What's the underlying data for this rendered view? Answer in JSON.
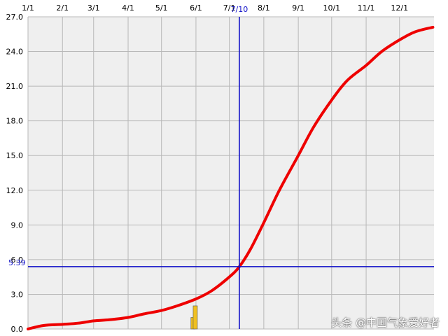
{
  "chart_data": {
    "type": "line",
    "title": "",
    "xlabel": "",
    "ylabel": "",
    "x_axis": {
      "kind": "date",
      "range": [
        "1/1",
        "12/31"
      ],
      "ticks": [
        "1/1",
        "2/1",
        "3/1",
        "4/1",
        "5/1",
        "6/1",
        "7/1",
        "8/1",
        "9/1",
        "10/1",
        "11/1",
        "12/1"
      ],
      "position": "top"
    },
    "y_axis": {
      "range": [
        0,
        27
      ],
      "ticks": [
        "0.0",
        "3.0",
        "6.0",
        "9.0",
        "12.0",
        "15.0",
        "18.0",
        "21.0",
        "24.0",
        "27.0"
      ]
    },
    "grid": true,
    "series": [
      {
        "color": "#ee0000",
        "points": [
          {
            "x": "1/1",
            "y": 0.0
          },
          {
            "x": "1/15",
            "y": 0.3
          },
          {
            "x": "2/1",
            "y": 0.4
          },
          {
            "x": "2/15",
            "y": 0.5
          },
          {
            "x": "3/1",
            "y": 0.7
          },
          {
            "x": "3/15",
            "y": 0.8
          },
          {
            "x": "4/1",
            "y": 1.0
          },
          {
            "x": "4/15",
            "y": 1.3
          },
          {
            "x": "5/1",
            "y": 1.6
          },
          {
            "x": "5/15",
            "y": 2.0
          },
          {
            "x": "6/1",
            "y": 2.6
          },
          {
            "x": "6/15",
            "y": 3.3
          },
          {
            "x": "7/1",
            "y": 4.5
          },
          {
            "x": "7/10",
            "y": 5.39
          },
          {
            "x": "7/20",
            "y": 6.9
          },
          {
            "x": "8/1",
            "y": 9.2
          },
          {
            "x": "8/15",
            "y": 12.0
          },
          {
            "x": "9/1",
            "y": 15.0
          },
          {
            "x": "9/15",
            "y": 17.5
          },
          {
            "x": "10/1",
            "y": 19.8
          },
          {
            "x": "10/15",
            "y": 21.5
          },
          {
            "x": "11/1",
            "y": 22.8
          },
          {
            "x": "11/15",
            "y": 24.0
          },
          {
            "x": "12/1",
            "y": 25.0
          },
          {
            "x": "12/15",
            "y": 25.7
          },
          {
            "x": "12/31",
            "y": 26.1
          }
        ]
      }
    ],
    "bars": {
      "color": "#f0c020",
      "items": [
        {
          "x": "5/30",
          "y": 1.0
        },
        {
          "x": "6/1",
          "y": 2.0
        }
      ]
    },
    "marker": {
      "color": "#1010c8",
      "x": "7/10",
      "x_label": "7/10",
      "y": 5.39,
      "y_label": "5.39"
    }
  },
  "watermark": "头条 @中国气象爱好者"
}
